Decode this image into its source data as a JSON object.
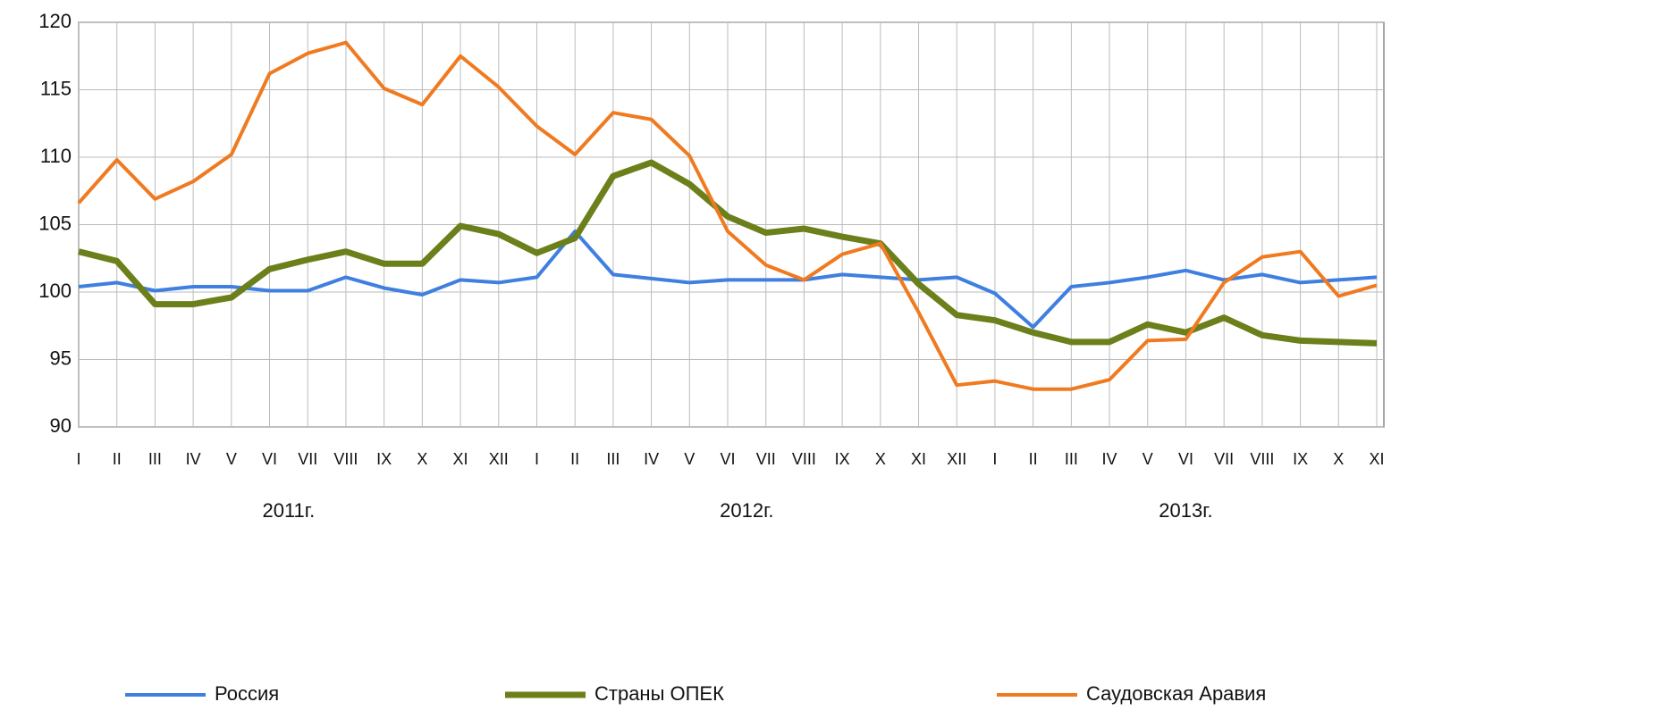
{
  "chart_data": {
    "type": "line",
    "categories": [
      "I",
      "II",
      "III",
      "IV",
      "V",
      "VI",
      "VII",
      "VIII",
      "IX",
      "X",
      "XI",
      "XII",
      "I",
      "II",
      "III",
      "IV",
      "V",
      "VI",
      "VII",
      "VIII",
      "IX",
      "X",
      "XI",
      "XII",
      "I",
      "II",
      "III",
      "IV",
      "V",
      "VI",
      "VII",
      "VIII",
      "IX",
      "X",
      "XI"
    ],
    "year_labels": [
      "2011г.",
      "2012г.",
      "2013г."
    ],
    "series": [
      {
        "name": "Россия",
        "color": "#3f7fe0",
        "values": [
          100.4,
          100.7,
          100.1,
          100.4,
          100.4,
          100.1,
          100.1,
          101.1,
          100.3,
          99.8,
          100.9,
          100.7,
          101.1,
          104.5,
          101.3,
          101.0,
          100.7,
          100.9,
          100.9,
          100.9,
          101.3,
          101.1,
          100.9,
          101.1,
          99.9,
          97.4,
          100.4,
          100.7,
          101.1,
          101.6,
          100.9,
          101.3,
          100.7,
          100.9,
          101.1
        ]
      },
      {
        "name": "Страны ОПЕК",
        "color": "#6b7f1a",
        "values": [
          103.0,
          102.3,
          99.1,
          99.1,
          99.6,
          101.7,
          102.4,
          103.0,
          102.1,
          102.1,
          104.9,
          104.3,
          102.9,
          104.0,
          108.6,
          109.6,
          108.0,
          105.6,
          104.4,
          104.7,
          104.1,
          103.6,
          100.6,
          98.3,
          97.9,
          97.0,
          96.3,
          96.3,
          97.6,
          97.0,
          98.1,
          96.8,
          96.4,
          96.3,
          96.2
        ]
      },
      {
        "name": "Саудовская Аравия",
        "color": "#f07a20",
        "values": [
          106.6,
          109.8,
          106.9,
          108.2,
          110.2,
          116.2,
          117.7,
          118.5,
          115.1,
          113.9,
          117.5,
          115.2,
          112.3,
          110.2,
          113.3,
          112.8,
          110.1,
          104.5,
          102.0,
          100.9,
          102.8,
          103.6,
          98.5,
          93.1,
          93.4,
          92.8,
          92.8,
          93.5,
          96.4,
          96.5,
          100.7,
          102.6,
          103.0,
          99.7,
          100.5
        ]
      }
    ],
    "ylim": [
      90,
      120
    ],
    "yticks": [
      90,
      95,
      100,
      105,
      110,
      115,
      120
    ],
    "grid": true
  }
}
